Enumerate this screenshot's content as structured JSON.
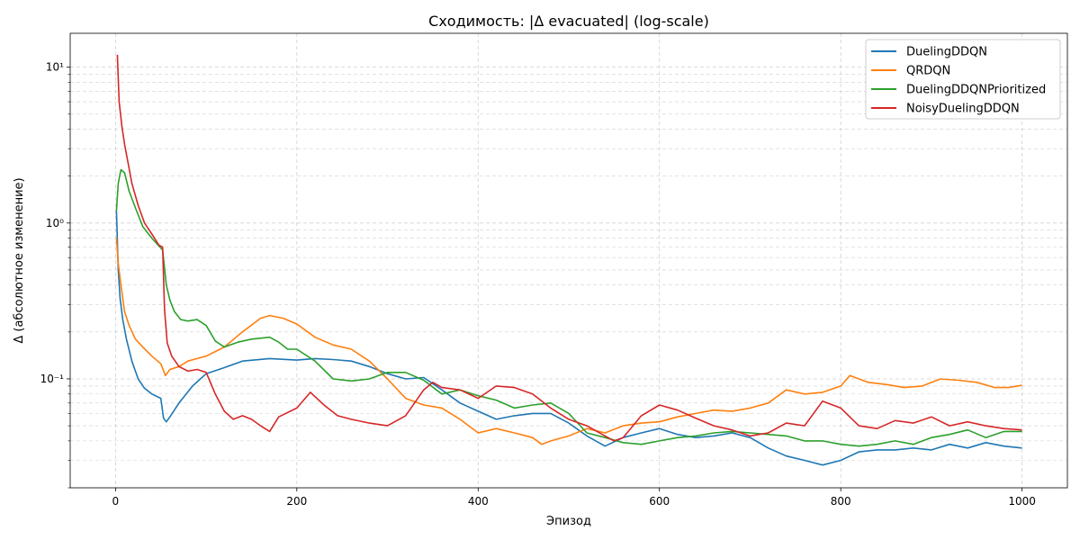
{
  "chart_data": {
    "type": "line",
    "title": "Сходимость: |Δ evacuated| (log-scale)",
    "xlabel": "Эпизод",
    "ylabel": "Δ (абсолютное изменение)",
    "xlim": [
      -50,
      1050
    ],
    "ylim": [
      0.02,
      16.5
    ],
    "yscale": "log",
    "grid": true,
    "legend_position": "top-right",
    "x_ticks": [
      0,
      200,
      400,
      600,
      800,
      1000
    ],
    "x_tick_labels": [
      "0",
      "200",
      "400",
      "600",
      "800",
      "1000"
    ],
    "y_ticks": [
      0.1,
      1,
      10
    ],
    "y_tick_labels": [
      "10⁻¹",
      "10⁰",
      "10¹"
    ],
    "series": [
      {
        "name": "DuelingDDQN",
        "color": "#1f77b4",
        "x": [
          1,
          3,
          5,
          8,
          12,
          18,
          25,
          32,
          40,
          50,
          53,
          56,
          60,
          70,
          85,
          100,
          120,
          140,
          170,
          200,
          220,
          240,
          260,
          280,
          300,
          320,
          340,
          360,
          380,
          400,
          420,
          440,
          460,
          480,
          500,
          520,
          540,
          560,
          580,
          600,
          620,
          640,
          660,
          680,
          700,
          720,
          740,
          760,
          780,
          800,
          820,
          840,
          860,
          880,
          900,
          920,
          940,
          960,
          980,
          1000
        ],
        "y": [
          1.2,
          0.5,
          0.33,
          0.24,
          0.18,
          0.13,
          0.1,
          0.087,
          0.08,
          0.075,
          0.056,
          0.053,
          0.057,
          0.07,
          0.09,
          0.108,
          0.118,
          0.13,
          0.135,
          0.132,
          0.135,
          0.133,
          0.13,
          0.12,
          0.108,
          0.1,
          0.102,
          0.085,
          0.07,
          0.062,
          0.055,
          0.058,
          0.06,
          0.06,
          0.052,
          0.043,
          0.037,
          0.042,
          0.045,
          0.048,
          0.044,
          0.042,
          0.043,
          0.045,
          0.042,
          0.036,
          0.032,
          0.03,
          0.028,
          0.03,
          0.034,
          0.035,
          0.035,
          0.036,
          0.035,
          0.038,
          0.036,
          0.039,
          0.037,
          0.036
        ]
      },
      {
        "name": "QRDQN",
        "color": "#ff7f0e",
        "x": [
          1,
          3,
          6,
          10,
          15,
          22,
          30,
          40,
          50,
          55,
          60,
          70,
          80,
          90,
          100,
          120,
          140,
          160,
          170,
          185,
          200,
          220,
          240,
          260,
          280,
          300,
          320,
          340,
          360,
          380,
          400,
          420,
          440,
          460,
          470,
          480,
          500,
          520,
          540,
          560,
          580,
          600,
          620,
          640,
          660,
          680,
          700,
          720,
          740,
          760,
          780,
          800,
          810,
          830,
          850,
          870,
          890,
          910,
          930,
          950,
          970,
          985,
          1000
        ],
        "y": [
          0.8,
          0.55,
          0.4,
          0.27,
          0.22,
          0.18,
          0.16,
          0.14,
          0.125,
          0.105,
          0.115,
          0.12,
          0.13,
          0.135,
          0.14,
          0.16,
          0.2,
          0.245,
          0.255,
          0.245,
          0.225,
          0.185,
          0.165,
          0.155,
          0.13,
          0.1,
          0.075,
          0.068,
          0.065,
          0.055,
          0.045,
          0.048,
          0.045,
          0.042,
          0.038,
          0.04,
          0.043,
          0.048,
          0.045,
          0.05,
          0.052,
          0.053,
          0.057,
          0.06,
          0.063,
          0.062,
          0.065,
          0.07,
          0.085,
          0.08,
          0.082,
          0.09,
          0.105,
          0.095,
          0.092,
          0.088,
          0.09,
          0.1,
          0.098,
          0.095,
          0.088,
          0.088,
          0.091
        ]
      },
      {
        "name": "DuelingDDQNPrioritized",
        "color": "#2ca02c",
        "x": [
          1,
          3,
          6,
          10,
          15,
          22,
          30,
          40,
          52,
          56,
          60,
          65,
          72,
          80,
          90,
          100,
          110,
          120,
          135,
          150,
          170,
          180,
          190,
          200,
          220,
          240,
          260,
          280,
          300,
          320,
          340,
          360,
          380,
          400,
          420,
          440,
          460,
          480,
          500,
          520,
          540,
          560,
          580,
          600,
          620,
          640,
          660,
          680,
          700,
          720,
          740,
          760,
          780,
          800,
          820,
          840,
          860,
          880,
          900,
          920,
          940,
          960,
          980,
          1000
        ],
        "y": [
          1.2,
          1.8,
          2.2,
          2.1,
          1.6,
          1.25,
          0.95,
          0.8,
          0.67,
          0.4,
          0.32,
          0.27,
          0.24,
          0.235,
          0.24,
          0.22,
          0.175,
          0.16,
          0.172,
          0.18,
          0.185,
          0.172,
          0.155,
          0.155,
          0.13,
          0.1,
          0.097,
          0.1,
          0.11,
          0.11,
          0.098,
          0.08,
          0.085,
          0.078,
          0.073,
          0.065,
          0.068,
          0.07,
          0.06,
          0.045,
          0.042,
          0.039,
          0.038,
          0.04,
          0.042,
          0.043,
          0.045,
          0.046,
          0.045,
          0.044,
          0.043,
          0.04,
          0.04,
          0.038,
          0.037,
          0.038,
          0.04,
          0.038,
          0.042,
          0.044,
          0.047,
          0.042,
          0.046,
          0.046
        ]
      },
      {
        "name": "NoisyDuelingDDQN",
        "color": "#d62728",
        "x": [
          2,
          4,
          7,
          10,
          14,
          18,
          25,
          32,
          40,
          48,
          52,
          54,
          57,
          62,
          70,
          80,
          90,
          100,
          110,
          120,
          130,
          140,
          150,
          160,
          170,
          180,
          200,
          215,
          230,
          245,
          260,
          280,
          300,
          320,
          340,
          350,
          360,
          380,
          400,
          420,
          440,
          460,
          480,
          500,
          520,
          540,
          550,
          560,
          580,
          600,
          620,
          640,
          660,
          680,
          700,
          720,
          740,
          760,
          780,
          800,
          820,
          840,
          860,
          880,
          900,
          920,
          940,
          960,
          980,
          1000
        ],
        "y": [
          12,
          6,
          4.2,
          3.2,
          2.4,
          1.8,
          1.3,
          1.0,
          0.85,
          0.72,
          0.7,
          0.28,
          0.17,
          0.14,
          0.12,
          0.112,
          0.115,
          0.11,
          0.08,
          0.062,
          0.055,
          0.058,
          0.055,
          0.05,
          0.046,
          0.057,
          0.065,
          0.082,
          0.068,
          0.058,
          0.055,
          0.052,
          0.05,
          0.058,
          0.085,
          0.095,
          0.088,
          0.085,
          0.075,
          0.09,
          0.088,
          0.08,
          0.065,
          0.055,
          0.05,
          0.043,
          0.04,
          0.042,
          0.058,
          0.068,
          0.063,
          0.056,
          0.05,
          0.047,
          0.043,
          0.045,
          0.052,
          0.05,
          0.072,
          0.065,
          0.05,
          0.048,
          0.054,
          0.052,
          0.057,
          0.05,
          0.053,
          0.05,
          0.048,
          0.047
        ]
      }
    ]
  }
}
